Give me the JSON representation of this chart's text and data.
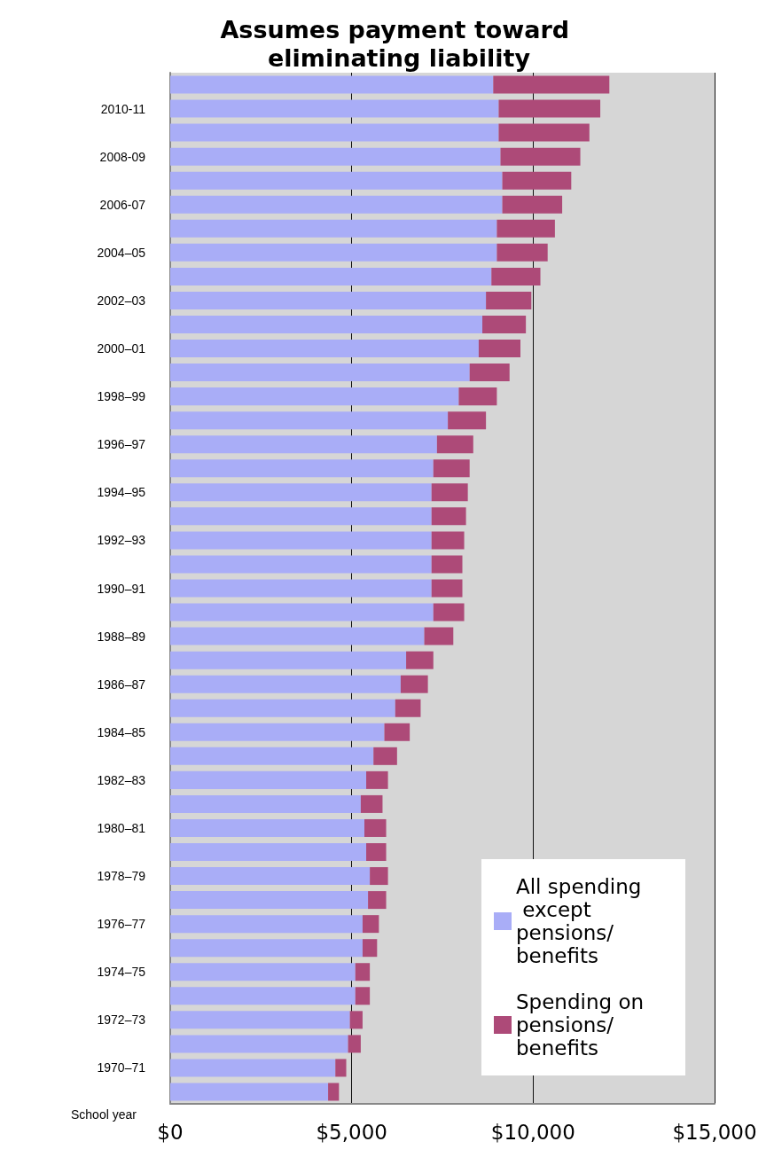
{
  "chart_data": {
    "type": "bar",
    "orientation": "horizontal",
    "stacked": true,
    "title": "Assumes payment toward eliminating liability",
    "ylabel": "School year",
    "categories": [
      null,
      "2010-11",
      null,
      "2008-09",
      null,
      "2006-07",
      null,
      "2004–05",
      null,
      "2002–03",
      null,
      "2000–01",
      null,
      "1998–99",
      null,
      "1996–97",
      null,
      "1994–95",
      null,
      "1992–93",
      null,
      "1990–91",
      null,
      "1988–89",
      null,
      "1986–87",
      null,
      "1984–85",
      null,
      "1982–83",
      null,
      "1980–81",
      null,
      "1978–79",
      null,
      "1976–77",
      null,
      "1974–75",
      null,
      "1972–73",
      null,
      "1970–71",
      null
    ],
    "series": [
      {
        "name": "All spending except pensions/benefits",
        "color": "#a9adf7",
        "values": [
          8900,
          9050,
          9050,
          9100,
          9150,
          9150,
          9000,
          9000,
          8850,
          8700,
          8600,
          8500,
          8250,
          7950,
          7650,
          7350,
          7250,
          7200,
          7200,
          7200,
          7200,
          7200,
          7250,
          7000,
          6500,
          6350,
          6200,
          5900,
          5600,
          5400,
          5250,
          5350,
          5400,
          5500,
          5450,
          5300,
          5300,
          5100,
          5100,
          4950,
          4900,
          4550,
          4350
        ]
      },
      {
        "name": "Spending on pensions/benefits",
        "color": "#ad4a78",
        "values": [
          3200,
          2800,
          2500,
          2200,
          1900,
          1650,
          1600,
          1400,
          1350,
          1250,
          1200,
          1150,
          1100,
          1050,
          1050,
          1000,
          1000,
          1000,
          950,
          900,
          850,
          850,
          850,
          800,
          750,
          750,
          700,
          700,
          650,
          600,
          600,
          600,
          550,
          500,
          500,
          450,
          400,
          400,
          400,
          350,
          350,
          300,
          300
        ]
      }
    ],
    "xlim": [
      0,
      15000
    ],
    "xticks": [
      {
        "value": 0,
        "label": "$0"
      },
      {
        "value": 5000,
        "label": "$5,000"
      },
      {
        "value": 10000,
        "label": "$10,000"
      },
      {
        "value": 15000,
        "label": "$15,000"
      }
    ],
    "grid": "x",
    "legend": "bottom right"
  }
}
